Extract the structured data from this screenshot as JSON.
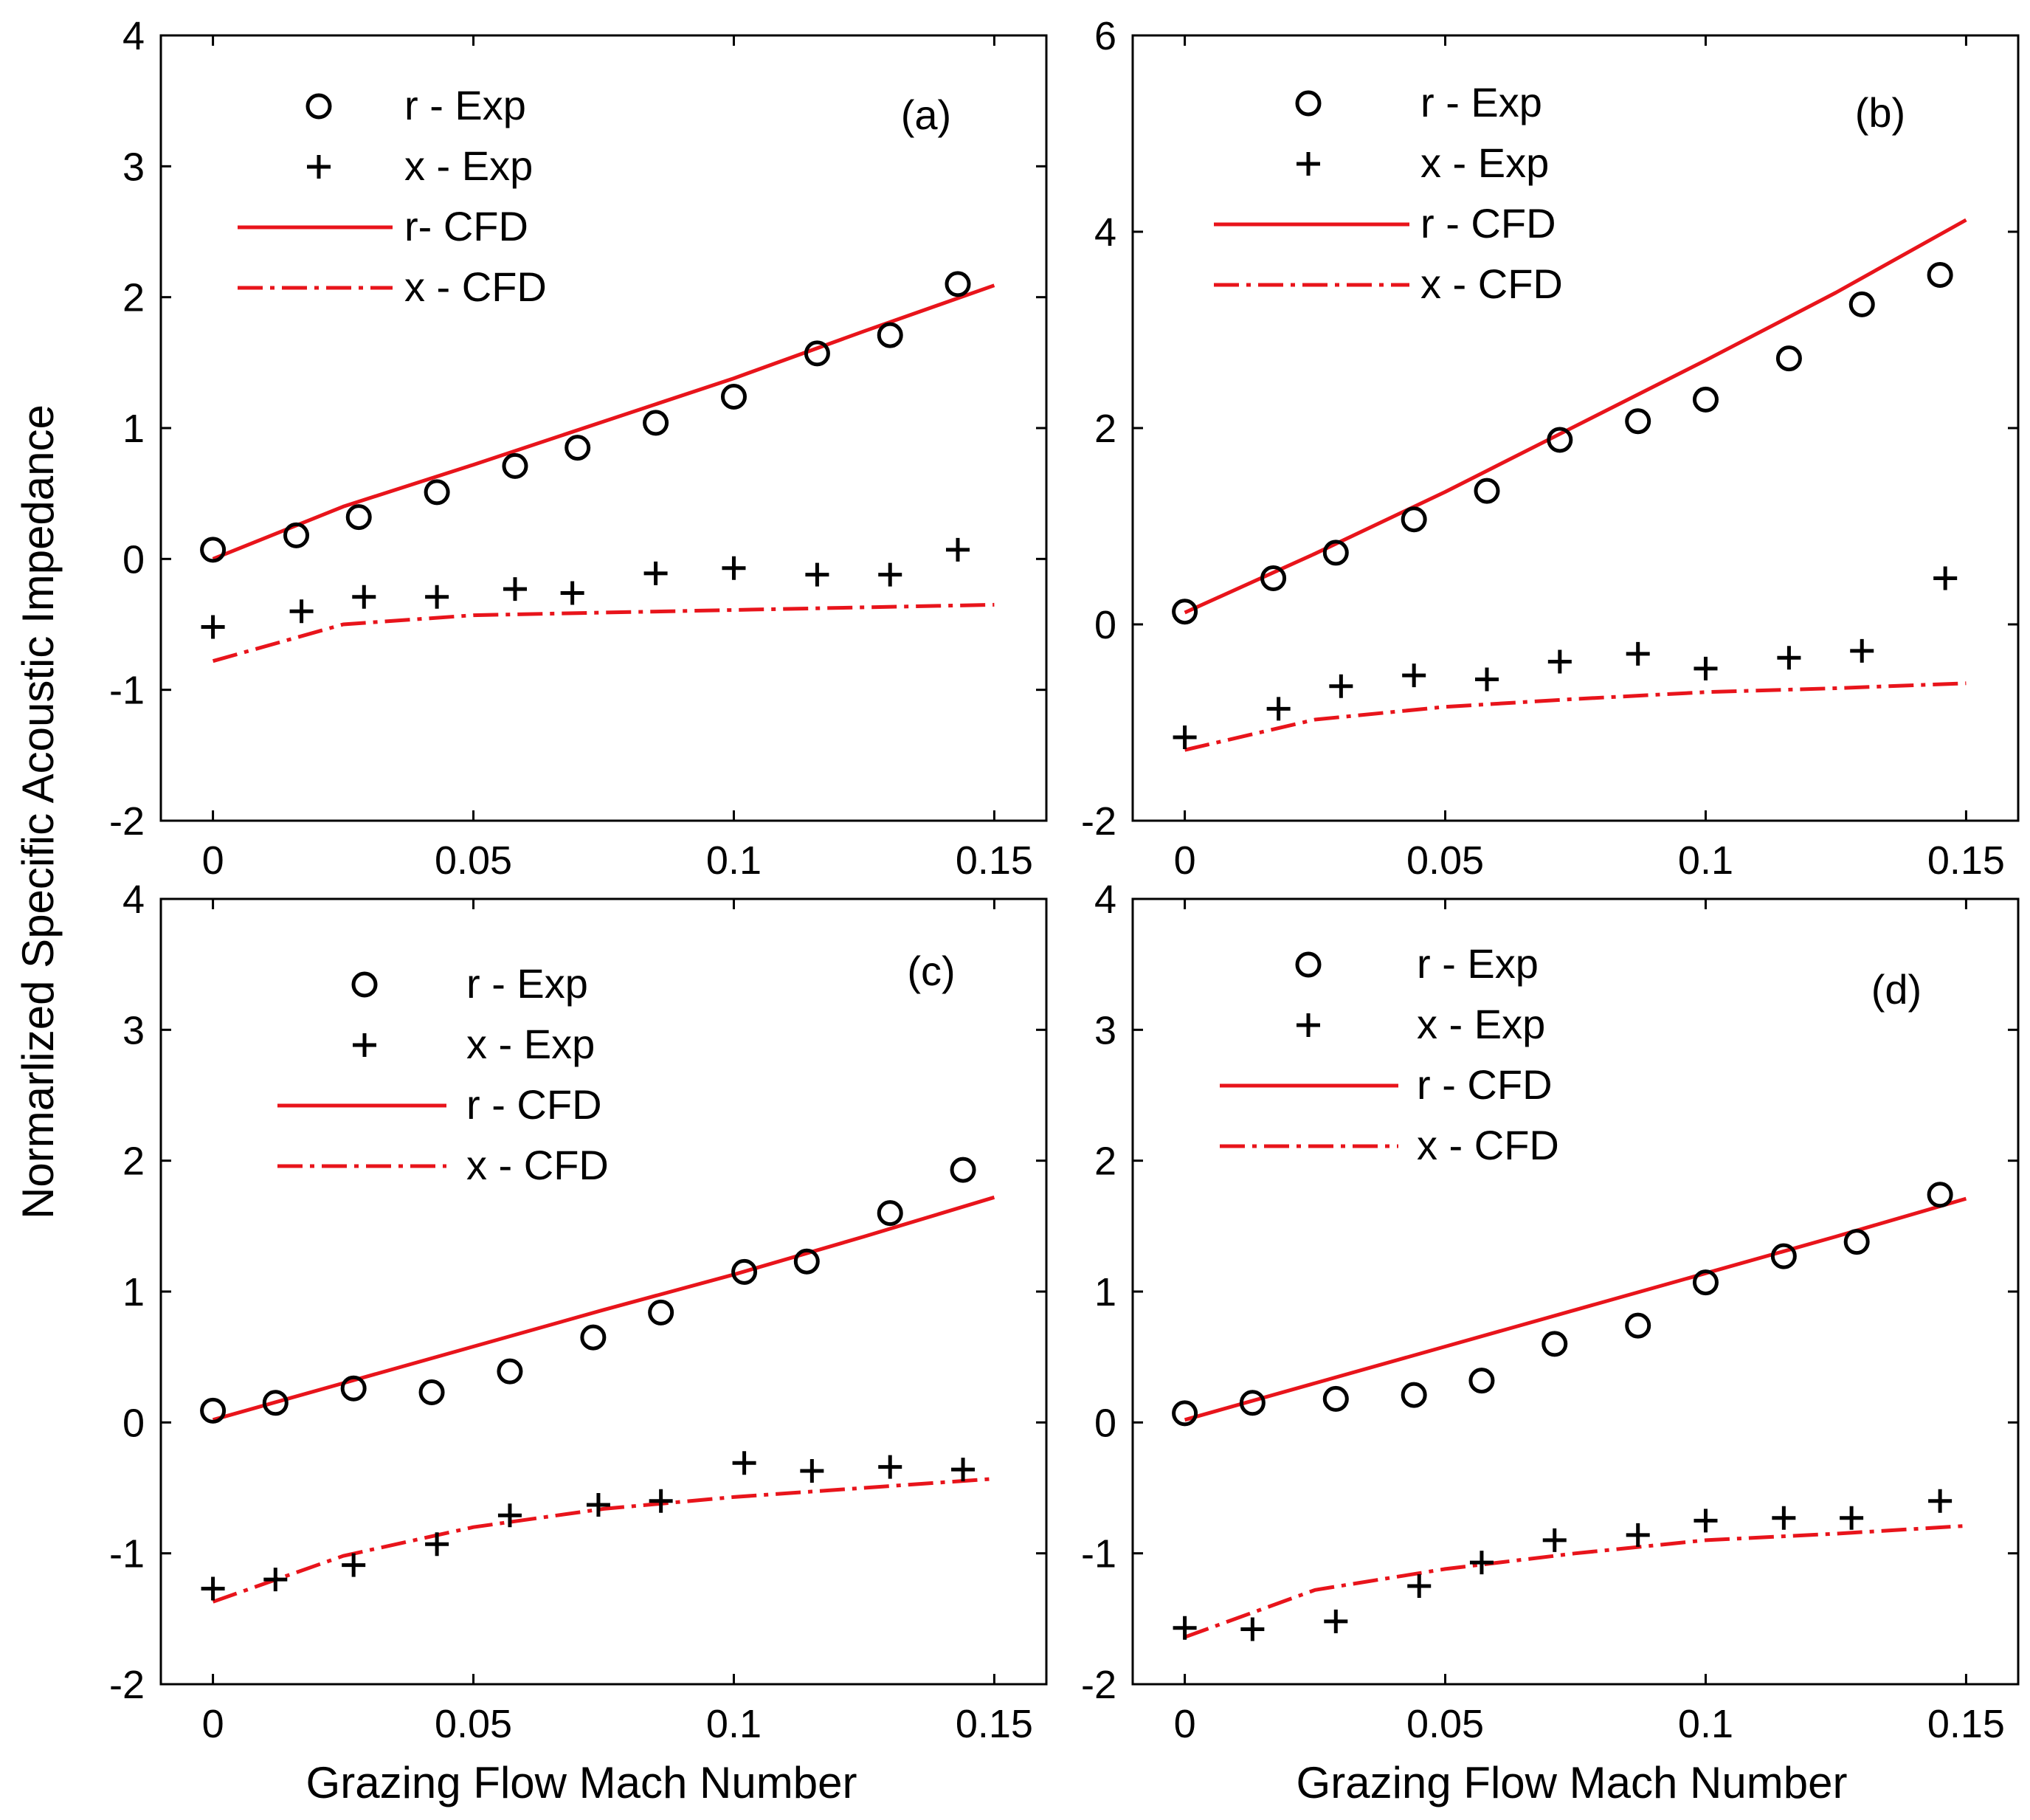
{
  "figure": {
    "ylabel": "Normarlized Specific Acoustic Impedance",
    "xlabel": "Grazing Flow Mach Number"
  },
  "colors": {
    "cfd": "#e8141b",
    "axis": "#000000",
    "marker": "#000000"
  },
  "chart_data": [
    {
      "type": "line+scatter",
      "panel_label": "(a)",
      "xlim": [
        -0.01,
        0.16
      ],
      "ylim": [
        -2,
        4
      ],
      "xticks": [
        0,
        0.05,
        0.1,
        0.15
      ],
      "xtick_labels": [
        "0",
        "0.05",
        "0.1",
        "0.15"
      ],
      "yticks": [
        -2,
        -1,
        0,
        1,
        2,
        3,
        4
      ],
      "ytick_labels": [
        "-2",
        "-1",
        "0",
        "1",
        "2",
        "3",
        "4"
      ],
      "grid": false,
      "legend_position": "top-left",
      "legend": [
        "r - Exp",
        "x - Exp",
        "r- CFD",
        "x - CFD"
      ],
      "r_exp": {
        "x": [
          0,
          0.016,
          0.028,
          0.043,
          0.058,
          0.07,
          0.085,
          0.1,
          0.116,
          0.13,
          0.143
        ],
        "y": [
          0.07,
          0.18,
          0.32,
          0.51,
          0.71,
          0.85,
          1.04,
          1.24,
          1.57,
          1.71,
          2.1
        ]
      },
      "x_exp": {
        "x": [
          0,
          0.017,
          0.029,
          0.043,
          0.058,
          0.069,
          0.085,
          0.1,
          0.116,
          0.13,
          0.143
        ],
        "y": [
          -0.52,
          -0.4,
          -0.29,
          -0.29,
          -0.23,
          -0.26,
          -0.11,
          -0.07,
          -0.12,
          -0.12,
          0.07
        ]
      },
      "r_cfd": {
        "x": [
          0,
          0.025,
          0.05,
          0.075,
          0.1,
          0.125,
          0.15
        ],
        "y": [
          0.0,
          0.4,
          0.72,
          1.05,
          1.38,
          1.74,
          2.09
        ]
      },
      "x_cfd": {
        "x": [
          0,
          0.025,
          0.05,
          0.075,
          0.1,
          0.125,
          0.15
        ],
        "y": [
          -0.78,
          -0.5,
          -0.43,
          -0.41,
          -0.39,
          -0.37,
          -0.35
        ]
      }
    },
    {
      "type": "line+scatter",
      "panel_label": "(b)",
      "xlim": [
        -0.01,
        0.16
      ],
      "ylim": [
        -2,
        6
      ],
      "xticks": [
        0,
        0.05,
        0.1,
        0.15
      ],
      "xtick_labels": [
        "0",
        "0.05",
        "0.1",
        "0.15"
      ],
      "yticks": [
        -2,
        0,
        2,
        4,
        6
      ],
      "ytick_labels": [
        "-2",
        "0",
        "2",
        "4",
        "6"
      ],
      "grid": false,
      "legend_position": "top-left",
      "legend": [
        "r - Exp",
        "x - Exp",
        "r - CFD",
        "x - CFD"
      ],
      "r_exp": {
        "x": [
          0,
          0.017,
          0.029,
          0.044,
          0.058,
          0.072,
          0.087,
          0.1,
          0.116,
          0.13,
          0.145
        ],
        "y": [
          0.13,
          0.47,
          0.73,
          1.07,
          1.36,
          1.88,
          2.07,
          2.29,
          2.71,
          3.26,
          3.56
        ]
      },
      "x_exp": {
        "x": [
          0,
          0.018,
          0.03,
          0.044,
          0.058,
          0.072,
          0.087,
          0.1,
          0.116,
          0.13,
          0.146
        ],
        "y": [
          -1.15,
          -0.86,
          -0.63,
          -0.52,
          -0.56,
          -0.38,
          -0.3,
          -0.45,
          -0.34,
          -0.27,
          0.47
        ]
      },
      "r_cfd": {
        "x": [
          0,
          0.025,
          0.05,
          0.075,
          0.1,
          0.125,
          0.15
        ],
        "y": [
          0.12,
          0.72,
          1.35,
          2.02,
          2.69,
          3.38,
          4.12
        ]
      },
      "x_cfd": {
        "x": [
          0,
          0.025,
          0.05,
          0.075,
          0.1,
          0.125,
          0.15
        ],
        "y": [
          -1.28,
          -0.97,
          -0.84,
          -0.76,
          -0.69,
          -0.65,
          -0.6
        ]
      }
    },
    {
      "type": "line+scatter",
      "panel_label": "(c)",
      "xlim": [
        -0.01,
        0.16
      ],
      "ylim": [
        -2,
        4
      ],
      "xticks": [
        0,
        0.05,
        0.1,
        0.15
      ],
      "xtick_labels": [
        "0",
        "0.05",
        "0.1",
        "0.15"
      ],
      "yticks": [
        -2,
        -1,
        0,
        1,
        2,
        3,
        4
      ],
      "ytick_labels": [
        "-2",
        "-1",
        "0",
        "1",
        "2",
        "3",
        "4"
      ],
      "grid": false,
      "legend_position": "top-left",
      "legend": [
        "r - Exp",
        "x - Exp",
        "r - CFD",
        "x - CFD"
      ],
      "r_exp": {
        "x": [
          0,
          0.012,
          0.027,
          0.042,
          0.057,
          0.073,
          0.086,
          0.102,
          0.114,
          0.13,
          0.144
        ],
        "y": [
          0.09,
          0.15,
          0.26,
          0.23,
          0.39,
          0.65,
          0.84,
          1.15,
          1.23,
          1.6,
          1.93
        ]
      },
      "x_exp": {
        "x": [
          0,
          0.012,
          0.027,
          0.043,
          0.057,
          0.074,
          0.086,
          0.102,
          0.115,
          0.13,
          0.144
        ],
        "y": [
          -1.27,
          -1.2,
          -1.09,
          -0.93,
          -0.71,
          -0.63,
          -0.6,
          -0.31,
          -0.37,
          -0.34,
          -0.36
        ]
      },
      "r_cfd": {
        "x": [
          0,
          0.025,
          0.05,
          0.075,
          0.1,
          0.125,
          0.15
        ],
        "y": [
          0.02,
          0.3,
          0.58,
          0.86,
          1.13,
          1.42,
          1.72
        ]
      },
      "x_cfd": {
        "x": [
          0,
          0.025,
          0.05,
          0.075,
          0.1,
          0.125,
          0.15
        ],
        "y": [
          -1.37,
          -1.02,
          -0.8,
          -0.66,
          -0.57,
          -0.5,
          -0.43
        ]
      }
    },
    {
      "type": "line+scatter",
      "panel_label": "(d)",
      "xlim": [
        -0.01,
        0.16
      ],
      "ylim": [
        -2,
        4
      ],
      "xticks": [
        0,
        0.05,
        0.1,
        0.15
      ],
      "xtick_labels": [
        "0",
        "0.05",
        "0.1",
        "0.15"
      ],
      "yticks": [
        -2,
        -1,
        0,
        1,
        2,
        3,
        4
      ],
      "ytick_labels": [
        "-2",
        "-1",
        "0",
        "1",
        "2",
        "3",
        "4"
      ],
      "grid": false,
      "legend_position": "top-left",
      "legend": [
        "r - Exp",
        "x - Exp",
        "r - CFD",
        "x - CFD"
      ],
      "r_exp": {
        "x": [
          0,
          0.013,
          0.029,
          0.044,
          0.057,
          0.071,
          0.087,
          0.1,
          0.115,
          0.129,
          0.145
        ],
        "y": [
          0.07,
          0.15,
          0.18,
          0.21,
          0.32,
          0.6,
          0.74,
          1.07,
          1.27,
          1.38,
          1.74
        ]
      },
      "x_exp": {
        "x": [
          0,
          0.013,
          0.029,
          0.045,
          0.057,
          0.071,
          0.087,
          0.1,
          0.115,
          0.128,
          0.145
        ],
        "y": [
          -1.57,
          -1.58,
          -1.52,
          -1.25,
          -1.07,
          -0.9,
          -0.86,
          -0.75,
          -0.73,
          -0.73,
          -0.6
        ]
      },
      "r_cfd": {
        "x": [
          0,
          0.025,
          0.05,
          0.075,
          0.1,
          0.125,
          0.15
        ],
        "y": [
          0.02,
          0.3,
          0.58,
          0.86,
          1.14,
          1.42,
          1.71
        ]
      },
      "x_cfd": {
        "x": [
          0,
          0.025,
          0.05,
          0.075,
          0.1,
          0.125,
          0.15
        ],
        "y": [
          -1.64,
          -1.28,
          -1.12,
          -1.0,
          -0.9,
          -0.85,
          -0.79
        ]
      }
    }
  ]
}
